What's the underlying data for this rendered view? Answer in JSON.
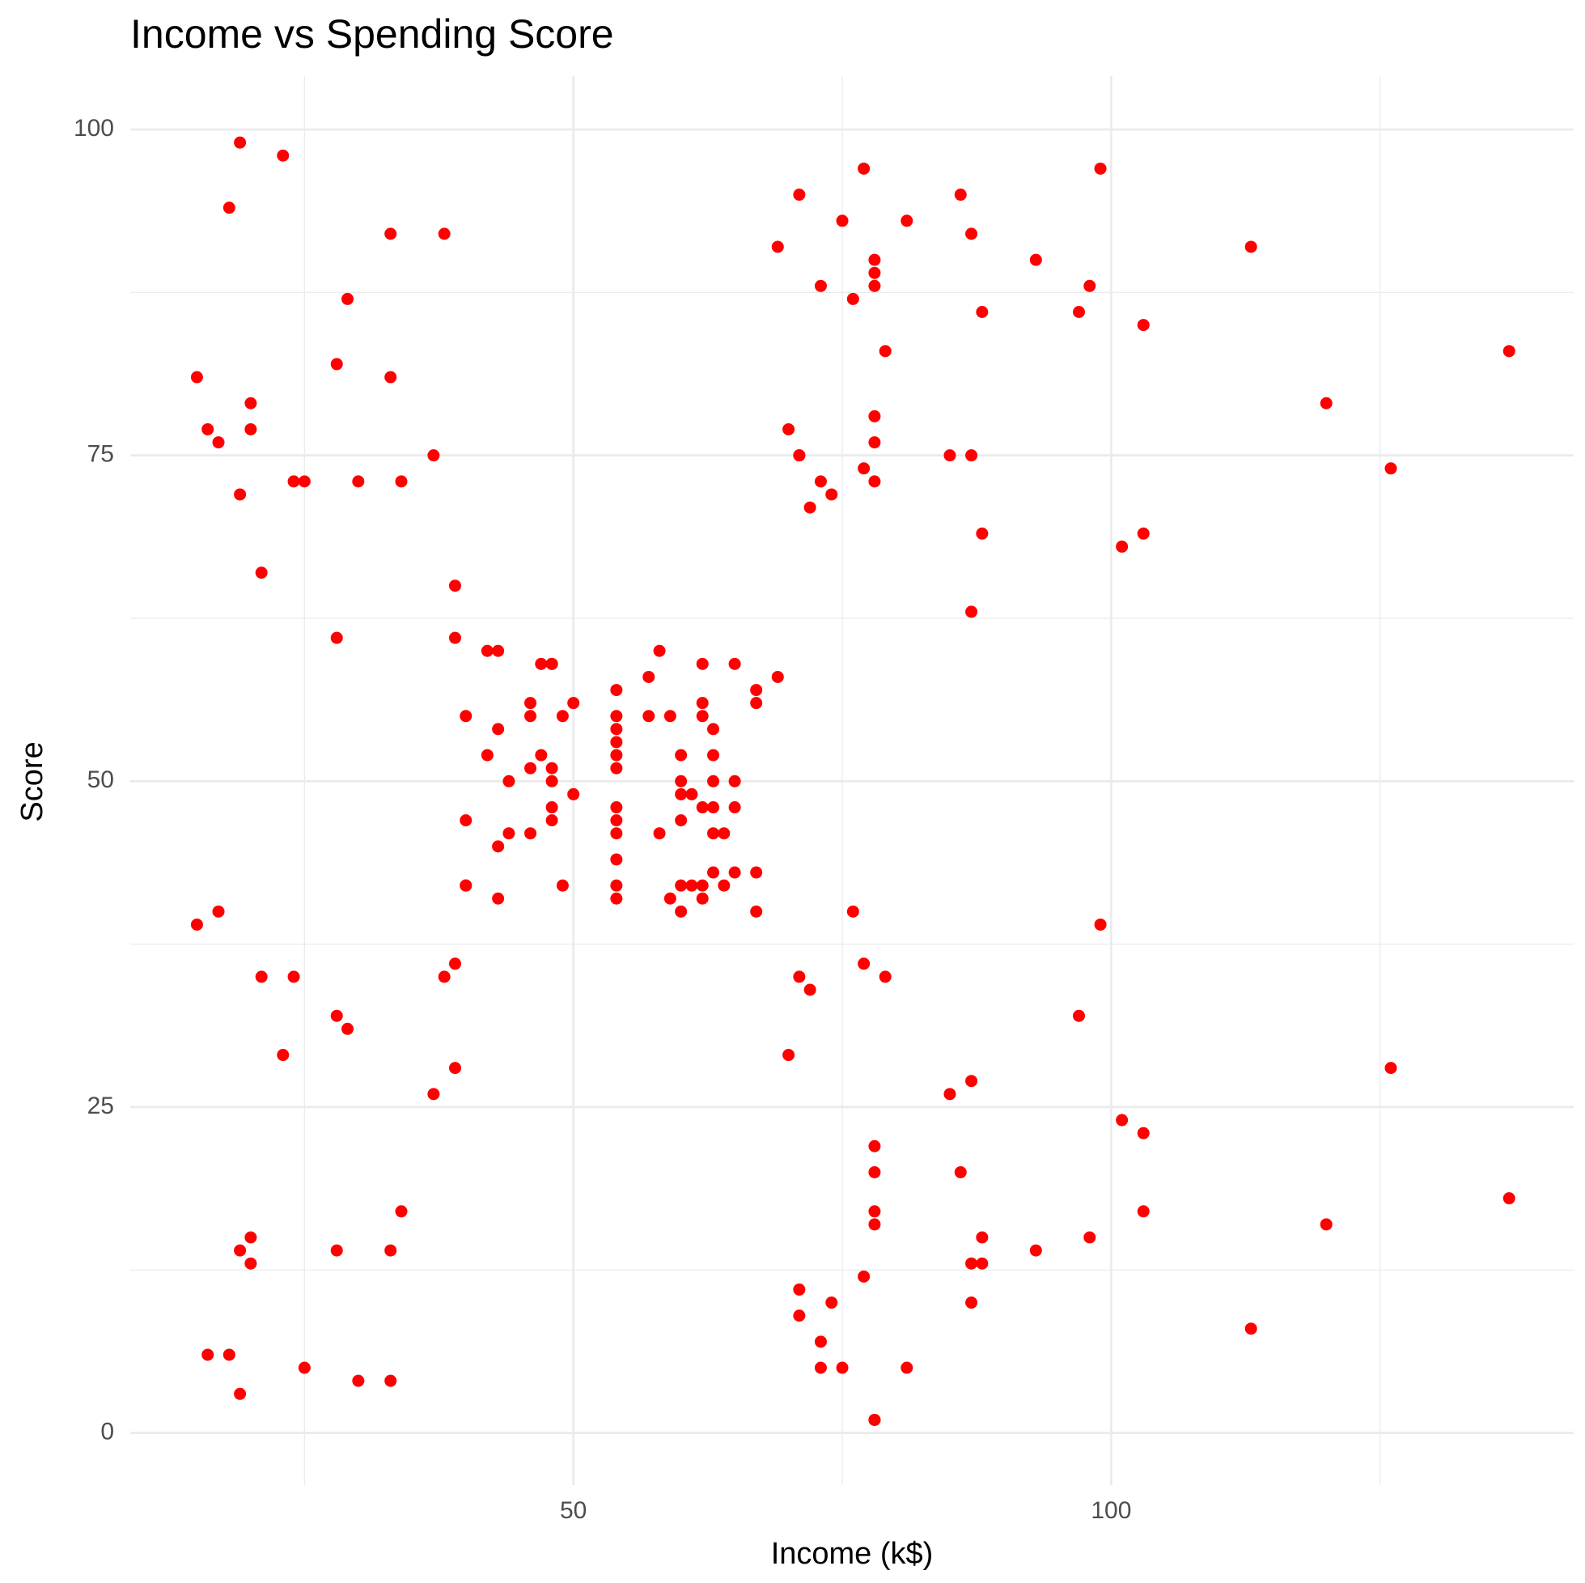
{
  "chart_data": {
    "type": "scatter",
    "title": "Income vs Spending Score",
    "x_label": "Income (k$)",
    "y_label": "Score",
    "color": "#ff0000",
    "grid": true,
    "x": [
      15,
      15,
      16,
      16,
      17,
      17,
      18,
      18,
      19,
      19,
      19,
      19,
      20,
      20,
      20,
      20,
      21,
      21,
      23,
      23,
      24,
      24,
      25,
      25,
      28,
      28,
      28,
      28,
      29,
      29,
      30,
      30,
      33,
      33,
      33,
      33,
      34,
      34,
      37,
      37,
      38,
      38,
      39,
      39,
      39,
      39,
      40,
      40,
      40,
      40,
      42,
      42,
      43,
      43,
      43,
      43,
      44,
      44,
      46,
      46,
      46,
      46,
      47,
      47,
      48,
      48,
      48,
      48,
      48,
      48,
      49,
      49,
      50,
      50,
      54,
      54,
      54,
      54,
      54,
      54,
      54,
      54,
      54,
      54,
      54,
      54,
      57,
      57,
      58,
      58,
      59,
      59,
      60,
      60,
      60,
      60,
      60,
      60,
      61,
      61,
      62,
      62,
      62,
      62,
      62,
      62,
      63,
      63,
      63,
      63,
      63,
      63,
      64,
      64,
      65,
      65,
      65,
      65,
      67,
      67,
      67,
      67,
      69,
      69,
      70,
      70,
      71,
      71,
      71,
      71,
      71,
      71,
      72,
      72,
      73,
      73,
      73,
      73,
      74,
      74,
      75,
      75,
      76,
      76,
      77,
      77,
      77,
      77,
      78,
      78,
      78,
      78,
      78,
      78,
      78,
      78,
      78,
      78,
      78,
      78,
      79,
      79,
      81,
      81,
      85,
      85,
      86,
      86,
      87,
      87,
      87,
      87,
      87,
      87,
      88,
      88,
      88,
      88,
      93,
      93,
      97,
      97,
      98,
      98,
      99,
      99,
      101,
      101,
      103,
      103,
      103,
      103,
      113,
      113,
      120,
      120,
      126,
      126,
      137,
      137
    ],
    "values": [
      39,
      81,
      6,
      77,
      40,
      76,
      6,
      94,
      3,
      72,
      14,
      99,
      15,
      77,
      13,
      79,
      35,
      66,
      29,
      98,
      35,
      73,
      5,
      73,
      14,
      82,
      32,
      61,
      31,
      87,
      4,
      73,
      4,
      92,
      14,
      81,
      17,
      73,
      26,
      75,
      35,
      92,
      36,
      61,
      28,
      65,
      55,
      47,
      42,
      42,
      52,
      60,
      54,
      60,
      45,
      41,
      50,
      46,
      51,
      46,
      56,
      55,
      52,
      59,
      51,
      59,
      50,
      48,
      59,
      47,
      55,
      42,
      49,
      56,
      47,
      54,
      53,
      48,
      52,
      42,
      51,
      55,
      41,
      44,
      57,
      46,
      58,
      55,
      60,
      46,
      55,
      41,
      49,
      40,
      42,
      52,
      47,
      50,
      42,
      49,
      41,
      48,
      59,
      55,
      56,
      42,
      50,
      46,
      43,
      48,
      52,
      54,
      42,
      46,
      48,
      50,
      43,
      59,
      43,
      57,
      56,
      40,
      58,
      91,
      29,
      77,
      35,
      95,
      11,
      75,
      9,
      75,
      34,
      71,
      5,
      88,
      7,
      73,
      10,
      72,
      5,
      93,
      40,
      87,
      12,
      97,
      36,
      74,
      22,
      90,
      17,
      88,
      20,
      76,
      16,
      89,
      1,
      78,
      1,
      73,
      35,
      83,
      5,
      93,
      26,
      75,
      20,
      95,
      27,
      63,
      13,
      75,
      10,
      92,
      13,
      86,
      15,
      69,
      14,
      90,
      32,
      86,
      15,
      88,
      39,
      97,
      24,
      68,
      17,
      85,
      23,
      69,
      8,
      91,
      16,
      79,
      28,
      74,
      18,
      83
    ],
    "xlim": [
      8.8,
      143
    ],
    "ylim": [
      -4,
      104.1
    ],
    "xticks": [
      50,
      100
    ],
    "yticks": [
      0,
      25,
      50,
      75,
      100
    ],
    "x_minor_grid": [
      25,
      75,
      125
    ],
    "y_minor_grid": [
      12.5,
      37.5,
      62.5,
      87.5
    ]
  }
}
